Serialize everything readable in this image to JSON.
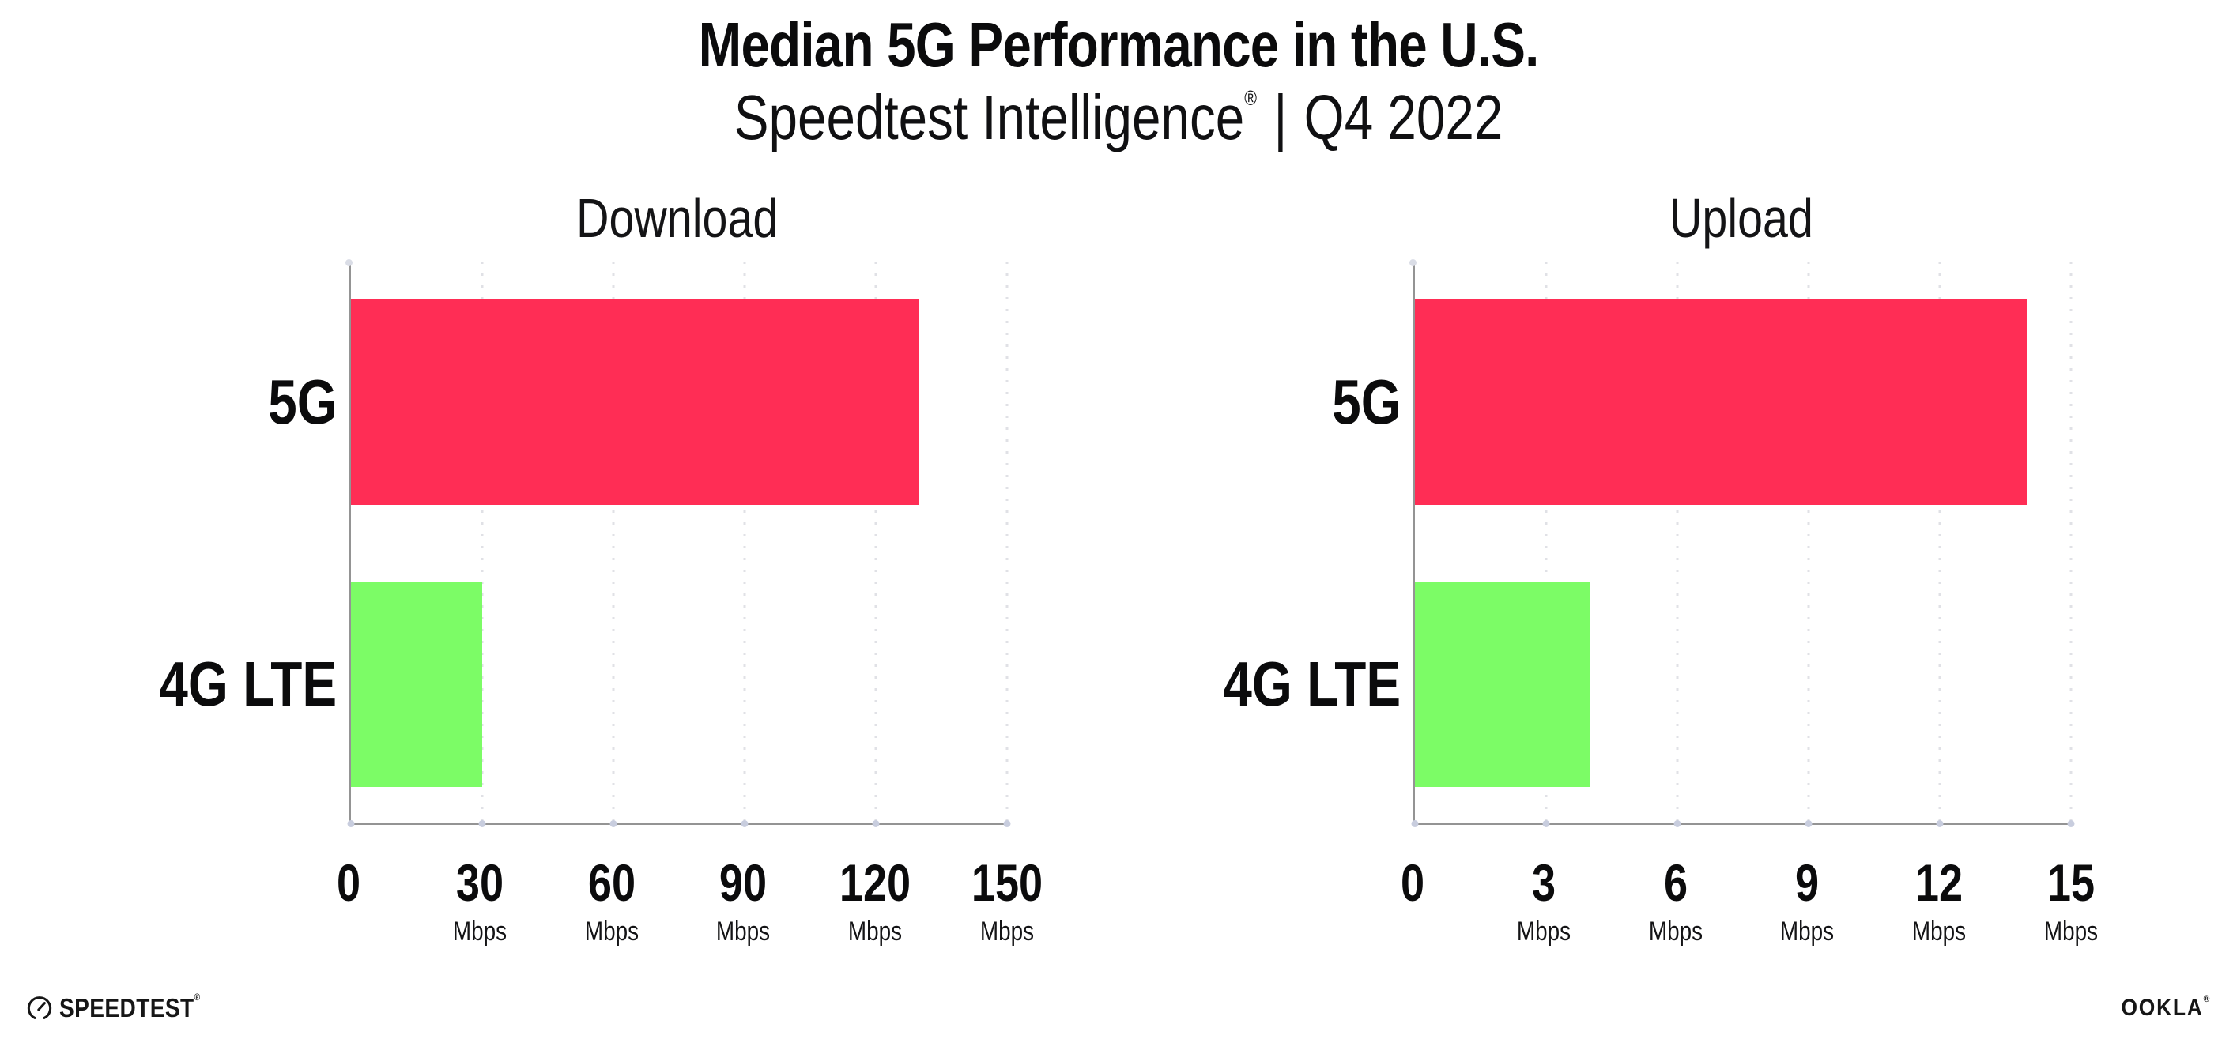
{
  "header": {
    "title": "Median 5G Performance in the U.S.",
    "subtitle_brand": "Speedtest Intelligence",
    "subtitle_reg": "®",
    "subtitle_separator": "|",
    "subtitle_period": "Q4 2022"
  },
  "colors": {
    "bar_5g": "#FF2D55",
    "bar_4g_lte": "#7CFC66",
    "axis": "#949494",
    "gridline": "#E0E1E6",
    "tick_dot": "#C8CDDE",
    "text": "#0B0B0C"
  },
  "chart_data": [
    {
      "type": "bar",
      "orientation": "horizontal",
      "title": "Download",
      "categories": [
        "5G",
        "4G LTE"
      ],
      "values": [
        130,
        30
      ],
      "unit": "Mbps",
      "xlim": [
        0,
        150
      ],
      "xticks": [
        0,
        30,
        60,
        90,
        120,
        150
      ],
      "bar_colors": [
        "#FF2D55",
        "#7CFC66"
      ],
      "grid": "dotted-vertical",
      "legend": "none"
    },
    {
      "type": "bar",
      "orientation": "horizontal",
      "title": "Upload",
      "categories": [
        "5G",
        "4G LTE"
      ],
      "values": [
        14,
        4
      ],
      "unit": "Mbps",
      "xlim": [
        0,
        15
      ],
      "xticks": [
        0,
        3,
        6,
        9,
        12,
        15
      ],
      "bar_colors": [
        "#FF2D55",
        "#7CFC66"
      ],
      "grid": "dotted-vertical",
      "legend": "none"
    }
  ],
  "footer": {
    "speedtest_label": "SPEEDTEST",
    "speedtest_reg": "®",
    "ookla_label": "OOKLA",
    "ookla_reg": "®"
  }
}
